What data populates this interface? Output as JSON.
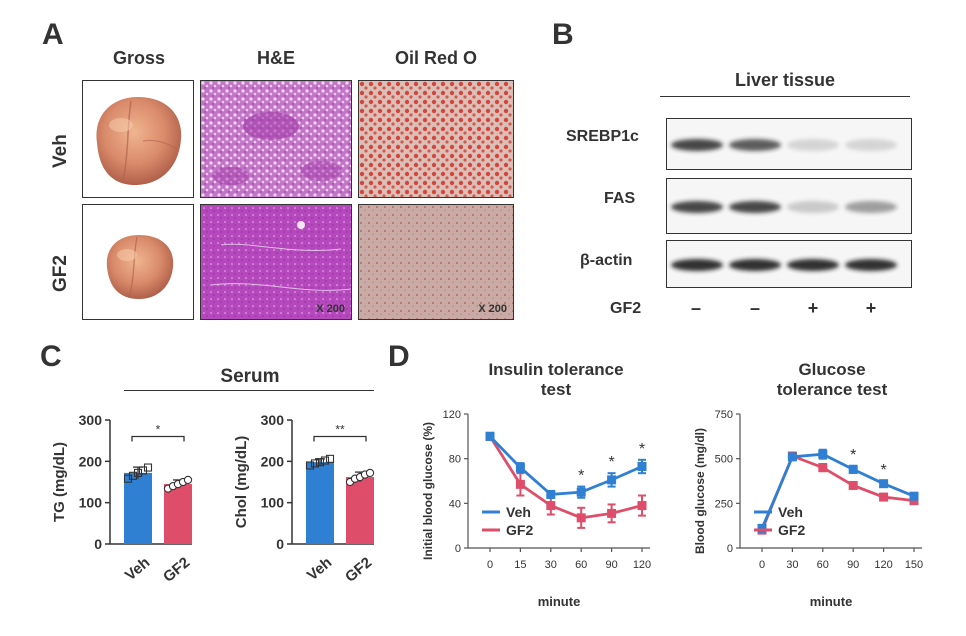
{
  "panels": {
    "a": "A",
    "b": "B",
    "c": "C",
    "d": "D"
  },
  "panel_a": {
    "col_headers": [
      "Gross",
      "H&E",
      "Oil Red O"
    ],
    "row_labels": [
      "Veh",
      "GF2"
    ],
    "magnification": "X 200"
  },
  "panel_b": {
    "title": "Liver tissue",
    "bands": [
      "SREBP1c",
      "FAS",
      "β-actin"
    ],
    "treatment_label": "GF2",
    "treatment_signs": [
      "–",
      "–",
      "+",
      "+"
    ],
    "band_intensity": {
      "SREBP1c": [
        0.8,
        0.7,
        0.15,
        0.15
      ],
      "FAS": [
        0.8,
        0.8,
        0.2,
        0.4
      ],
      "β-actin": [
        0.9,
        0.9,
        0.9,
        0.9
      ]
    }
  },
  "panel_c": {
    "title": "Serum"
  },
  "panel_d": {
    "itt_title": [
      "Insulin tolerance",
      "test"
    ],
    "gtt_title": [
      "Glucose",
      "tolerance test"
    ]
  },
  "colors": {
    "veh": "#2f7fd3",
    "gf2": "#de4e6a",
    "he": "#b050b8",
    "oil": "#c8a098"
  },
  "chart_data": [
    {
      "type": "bar",
      "id": "tg",
      "categories": [
        "Veh",
        "GF2"
      ],
      "values": [
        172,
        145
      ],
      "errors": [
        14,
        10
      ],
      "points": [
        [
          158,
          165,
          172,
          178,
          185
        ],
        [
          134,
          140,
          145,
          150,
          155
        ]
      ],
      "ylabel": "TG (mg/dL)",
      "ylim": [
        0,
        300
      ],
      "yticks": [
        0,
        100,
        200,
        300
      ],
      "significance": "*"
    },
    {
      "type": "bar",
      "id": "chol",
      "categories": [
        "Veh",
        "GF2"
      ],
      "values": [
        198,
        162
      ],
      "errors": [
        8,
        12
      ],
      "points": [
        [
          190,
          195,
          198,
          202,
          206
        ],
        [
          150,
          158,
          162,
          168,
          172
        ]
      ],
      "ylabel": "Chol (mg/dL)",
      "ylim": [
        0,
        300
      ],
      "yticks": [
        0,
        100,
        200,
        300
      ],
      "significance": "**"
    },
    {
      "type": "line",
      "id": "itt",
      "x": [
        0,
        15,
        30,
        60,
        90,
        120
      ],
      "series": [
        {
          "name": "Veh",
          "values": [
            100,
            72,
            48,
            50,
            61,
            73
          ],
          "errors": [
            3,
            4,
            3,
            5,
            6,
            6
          ]
        },
        {
          "name": "GF2",
          "values": [
            100,
            57,
            38,
            27,
            31,
            38
          ],
          "errors": [
            3,
            10,
            8,
            9,
            8,
            9
          ]
        }
      ],
      "xlabel": "minute",
      "ylabel": "Initial blood glucose  (%)",
      "ylim": [
        0,
        120
      ],
      "yticks": [
        0,
        40,
        80,
        120
      ],
      "significance": [
        "",
        "",
        "",
        "*",
        "*",
        "*"
      ]
    },
    {
      "type": "line",
      "id": "gtt",
      "x": [
        0,
        30,
        60,
        90,
        120,
        150
      ],
      "series": [
        {
          "name": "Veh",
          "values": [
            110,
            510,
            525,
            440,
            360,
            290
          ],
          "errors": [
            10,
            15,
            25,
            20,
            15,
            12
          ]
        },
        {
          "name": "GF2",
          "values": [
            100,
            515,
            450,
            350,
            285,
            265
          ],
          "errors": [
            10,
            15,
            20,
            15,
            12,
            12
          ]
        }
      ],
      "xlabel": "minute",
      "ylabel": "Blood glucose  (mg/dl)",
      "ylim": [
        0,
        750
      ],
      "yticks": [
        0,
        250,
        500,
        750
      ],
      "significance": [
        "",
        "",
        "",
        "*",
        "*",
        ""
      ]
    }
  ]
}
